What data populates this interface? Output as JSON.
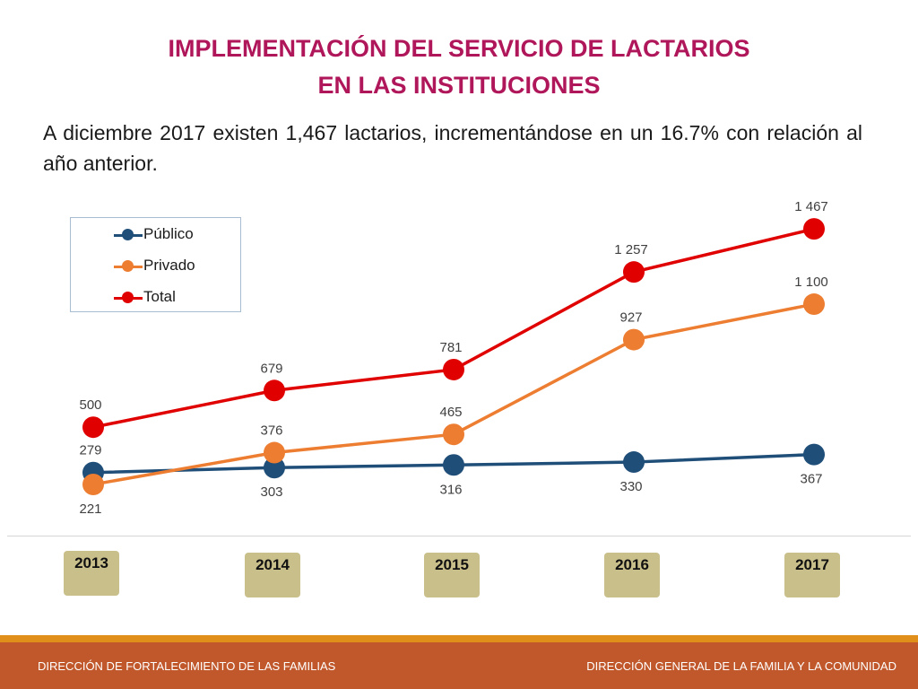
{
  "header": {
    "title_line1": "IMPLEMENTACIÓN DEL SERVICIO DE LACTARIOS",
    "title_line2": "EN LAS INSTITUCIONES",
    "subtitle": "A diciembre 2017 existen 1,467 lactarios, incrementándose en un 16.7% con relación al año anterior."
  },
  "chart_data": {
    "type": "line",
    "categories": [
      "2013",
      "2014",
      "2015",
      "2016",
      "2017"
    ],
    "series": [
      {
        "name": "Público",
        "color": "#1f4e79",
        "values": [
          279,
          303,
          316,
          330,
          367
        ],
        "label_position": [
          "above",
          "below",
          "below",
          "below",
          "below"
        ]
      },
      {
        "name": "Privado",
        "color": "#ed7d31",
        "values": [
          221,
          376,
          465,
          927,
          1100
        ],
        "label_position": [
          "below",
          "above",
          "above",
          "above",
          "above"
        ]
      },
      {
        "name": "Total",
        "color": "#e00000",
        "values": [
          500,
          679,
          781,
          1257,
          1467
        ],
        "label_position": [
          "above",
          "above",
          "above",
          "above",
          "above"
        ]
      }
    ],
    "data_labels": {
      "Público": [
        "279",
        "303",
        "316",
        "330",
        "367"
      ],
      "Privado": [
        "221",
        "376",
        "465",
        "927",
        "1 100"
      ],
      "Total": [
        "500",
        "679",
        "781",
        "1 257",
        "1 467"
      ]
    },
    "legend_position": "top-left",
    "grid": false,
    "ylim": [
      0,
      1500
    ]
  },
  "footer": {
    "left": "DIRECCIÓN DE FORTALECIMIENTO DE LAS FAMILIAS",
    "right": "DIRECCIÓN GENERAL DE LA FAMILIA Y LA COMUNIDAD"
  }
}
